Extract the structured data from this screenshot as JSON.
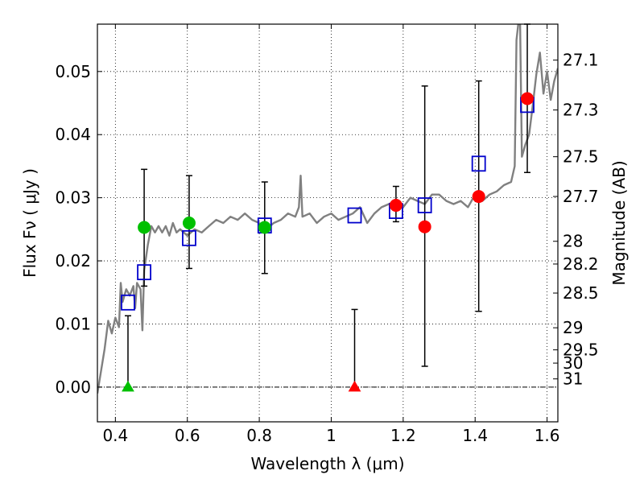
{
  "chart_data": {
    "type": "scatter",
    "xlabel": "Wavelength  λ (μm)",
    "ylabel": "Flux  Fν  ( μJy )",
    "ylabel_right": "Magnitude (AB)",
    "xlim": [
      0.35,
      1.63
    ],
    "ylim": [
      -0.0055,
      0.0575
    ],
    "grid": true,
    "x_ticks": [
      {
        "value": 0.4,
        "label": "0.4"
      },
      {
        "value": 0.6,
        "label": "0.6"
      },
      {
        "value": 0.8,
        "label": "0.8"
      },
      {
        "value": 1.0,
        "label": "1"
      },
      {
        "value": 1.2,
        "label": "1.2"
      },
      {
        "value": 1.4,
        "label": "1.4"
      },
      {
        "value": 1.6,
        "label": "1.6"
      }
    ],
    "y_ticks": [
      {
        "value": 0.0,
        "label": "0.00"
      },
      {
        "value": 0.01,
        "label": "0.01"
      },
      {
        "value": 0.02,
        "label": "0.02"
      },
      {
        "value": 0.03,
        "label": "0.03"
      },
      {
        "value": 0.04,
        "label": "0.04"
      },
      {
        "value": 0.05,
        "label": "0.05"
      }
    ],
    "mag_ticks": [
      {
        "flux": 0.0518,
        "label": "27.1"
      },
      {
        "flux": 0.0439,
        "label": "27.3"
      },
      {
        "flux": 0.0365,
        "label": "27.5"
      },
      {
        "flux": 0.0302,
        "label": "27.7"
      },
      {
        "flux": 0.0231,
        "label": "28"
      },
      {
        "flux": 0.0195,
        "label": "28.2"
      },
      {
        "flux": 0.0149,
        "label": "28.5"
      },
      {
        "flux": 0.0094,
        "label": "29"
      },
      {
        "flux": 0.0059,
        "label": "29.5"
      },
      {
        "flux": 0.0038,
        "label": "30"
      },
      {
        "flux": 0.0013,
        "label": "31"
      }
    ],
    "colors": {
      "model": "#808080",
      "green": "#00c000",
      "red": "#ff0000",
      "square": "#0000cc",
      "errorbar": "#000000",
      "zero_line": "#000000"
    },
    "model_spectrum": [
      [
        0.35,
        -0.001
      ],
      [
        0.37,
        0.006
      ],
      [
        0.38,
        0.0105
      ],
      [
        0.39,
        0.0085
      ],
      [
        0.4,
        0.011
      ],
      [
        0.41,
        0.0095
      ],
      [
        0.415,
        0.0165
      ],
      [
        0.42,
        0.0135
      ],
      [
        0.43,
        0.0155
      ],
      [
        0.44,
        0.0145
      ],
      [
        0.45,
        0.016
      ],
      [
        0.455,
        0.0125
      ],
      [
        0.46,
        0.0165
      ],
      [
        0.47,
        0.0155
      ],
      [
        0.475,
        0.009
      ],
      [
        0.48,
        0.0185
      ],
      [
        0.49,
        0.0225
      ],
      [
        0.5,
        0.0255
      ],
      [
        0.51,
        0.0245
      ],
      [
        0.52,
        0.0255
      ],
      [
        0.53,
        0.0245
      ],
      [
        0.54,
        0.0255
      ],
      [
        0.55,
        0.024
      ],
      [
        0.56,
        0.026
      ],
      [
        0.57,
        0.0245
      ],
      [
        0.58,
        0.025
      ],
      [
        0.6,
        0.024
      ],
      [
        0.62,
        0.025
      ],
      [
        0.64,
        0.0245
      ],
      [
        0.66,
        0.0255
      ],
      [
        0.68,
        0.0265
      ],
      [
        0.7,
        0.026
      ],
      [
        0.72,
        0.027
      ],
      [
        0.74,
        0.0265
      ],
      [
        0.76,
        0.0275
      ],
      [
        0.78,
        0.0265
      ],
      [
        0.8,
        0.026
      ],
      [
        0.82,
        0.025
      ],
      [
        0.84,
        0.026
      ],
      [
        0.86,
        0.0265
      ],
      [
        0.88,
        0.0275
      ],
      [
        0.9,
        0.027
      ],
      [
        0.91,
        0.0285
      ],
      [
        0.915,
        0.0335
      ],
      [
        0.92,
        0.027
      ],
      [
        0.94,
        0.0275
      ],
      [
        0.96,
        0.026
      ],
      [
        0.98,
        0.027
      ],
      [
        1.0,
        0.0275
      ],
      [
        1.02,
        0.0265
      ],
      [
        1.04,
        0.027
      ],
      [
        1.06,
        0.0275
      ],
      [
        1.08,
        0.0285
      ],
      [
        1.1,
        0.026
      ],
      [
        1.12,
        0.0275
      ],
      [
        1.14,
        0.0285
      ],
      [
        1.16,
        0.029
      ],
      [
        1.18,
        0.0295
      ],
      [
        1.2,
        0.0285
      ],
      [
        1.22,
        0.03
      ],
      [
        1.24,
        0.0295
      ],
      [
        1.26,
        0.029
      ],
      [
        1.28,
        0.0305
      ],
      [
        1.3,
        0.0305
      ],
      [
        1.32,
        0.0295
      ],
      [
        1.34,
        0.029
      ],
      [
        1.36,
        0.0295
      ],
      [
        1.38,
        0.0285
      ],
      [
        1.4,
        0.0305
      ],
      [
        1.42,
        0.0295
      ],
      [
        1.44,
        0.0305
      ],
      [
        1.46,
        0.031
      ],
      [
        1.48,
        0.032
      ],
      [
        1.5,
        0.0325
      ],
      [
        1.51,
        0.035
      ],
      [
        1.515,
        0.055
      ],
      [
        1.52,
        0.0575
      ],
      [
        1.525,
        0.0575
      ],
      [
        1.53,
        0.0365
      ],
      [
        1.54,
        0.0385
      ],
      [
        1.55,
        0.04
      ],
      [
        1.56,
        0.0445
      ],
      [
        1.57,
        0.0495
      ],
      [
        1.58,
        0.053
      ],
      [
        1.59,
        0.0465
      ],
      [
        1.6,
        0.05
      ],
      [
        1.61,
        0.0455
      ],
      [
        1.62,
        0.0485
      ],
      [
        1.63,
        0.0505
      ]
    ],
    "series": [
      {
        "name": "Observed (green)",
        "marker": "circle",
        "color_key": "green",
        "points": [
          {
            "x": 0.48,
            "y": 0.0253,
            "ylo": 0.016,
            "yhi": 0.0345
          },
          {
            "x": 0.605,
            "y": 0.026,
            "ylo": 0.0188,
            "yhi": 0.0335
          },
          {
            "x": 0.815,
            "y": 0.0253,
            "ylo": 0.018,
            "yhi": 0.0325
          }
        ]
      },
      {
        "name": "Observed (red)",
        "marker": "circle",
        "color_key": "red",
        "points": [
          {
            "x": 1.18,
            "y": 0.0288,
            "ylo": 0.0262,
            "yhi": 0.0318
          },
          {
            "x": 1.26,
            "y": 0.0254,
            "ylo": 0.0033,
            "yhi": 0.0477
          },
          {
            "x": 1.41,
            "y": 0.0302,
            "ylo": 0.012,
            "yhi": 0.0485
          },
          {
            "x": 1.545,
            "y": 0.0457,
            "ylo": 0.034,
            "yhi": 0.0575
          }
        ]
      },
      {
        "name": "Upper limits (green)",
        "marker": "triangle",
        "color_key": "green",
        "points": [
          {
            "x": 0.435,
            "y": 0.0,
            "ylo": 0.0,
            "yhi": 0.0113
          }
        ]
      },
      {
        "name": "Upper limits (red)",
        "marker": "triangle",
        "color_key": "red",
        "points": [
          {
            "x": 1.065,
            "y": 0.0,
            "ylo": 0.0,
            "yhi": 0.0123
          }
        ]
      },
      {
        "name": "Model photometry",
        "marker": "square",
        "color_key": "square",
        "points": [
          {
            "x": 0.435,
            "y": 0.0134
          },
          {
            "x": 0.48,
            "y": 0.0182
          },
          {
            "x": 0.605,
            "y": 0.0236
          },
          {
            "x": 0.815,
            "y": 0.0256
          },
          {
            "x": 1.065,
            "y": 0.0272
          },
          {
            "x": 1.18,
            "y": 0.0279
          },
          {
            "x": 1.26,
            "y": 0.0288
          },
          {
            "x": 1.41,
            "y": 0.0354
          },
          {
            "x": 1.545,
            "y": 0.0447
          }
        ]
      }
    ]
  }
}
